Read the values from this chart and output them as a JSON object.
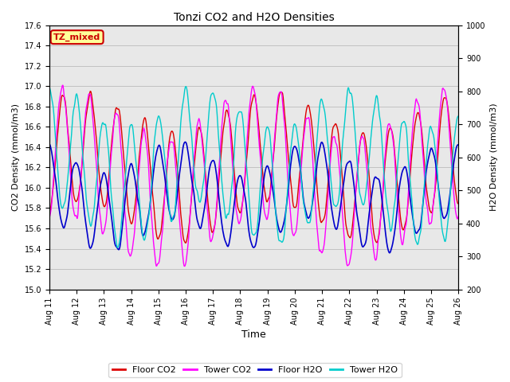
{
  "title": "Tonzi CO2 and H2O Densities",
  "xlabel": "Time",
  "ylabel_left": "CO2 Density (mmol/m3)",
  "ylabel_right": "H2O Density (mmol/m3)",
  "ylim_left": [
    15.0,
    17.6
  ],
  "ylim_right": [
    200,
    1000
  ],
  "yticks_left": [
    15.0,
    15.2,
    15.4,
    15.6,
    15.8,
    16.0,
    16.2,
    16.4,
    16.6,
    16.8,
    17.0,
    17.2,
    17.4,
    17.6
  ],
  "yticks_right": [
    200,
    300,
    400,
    500,
    600,
    700,
    800,
    900,
    1000
  ],
  "colors": {
    "floor_co2": "#dd0000",
    "tower_co2": "#ff00ff",
    "floor_h2o": "#0000cc",
    "tower_h2o": "#00cccc"
  },
  "legend_labels": [
    "Floor CO2",
    "Tower CO2",
    "Floor H2O",
    "Tower H2O"
  ],
  "annotation_text": "TZ_mixed",
  "annotation_color": "#cc0000",
  "annotation_bg": "#ffff99",
  "n_days": 15,
  "seed": 12345,
  "bg_color": "#e8e8e8",
  "fig_width": 6.4,
  "fig_height": 4.8
}
